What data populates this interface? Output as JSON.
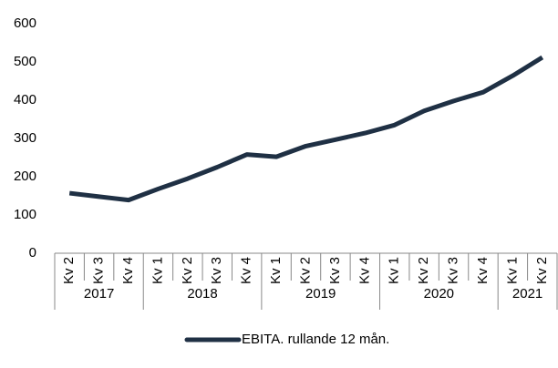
{
  "chart_data": {
    "type": "line",
    "groups": [
      {
        "name": "2017",
        "categories": [
          "Kv 2",
          "Kv 3",
          "Kv 4"
        ]
      },
      {
        "name": "2018",
        "categories": [
          "Kv 1",
          "Kv 2",
          "Kv 3",
          "Kv 4"
        ]
      },
      {
        "name": "2019",
        "categories": [
          "Kv 1",
          "Kv 2",
          "Kv 3",
          "Kv 4"
        ]
      },
      {
        "name": "2020",
        "categories": [
          "Kv 1",
          "Kv 2",
          "Kv 3",
          "Kv 4"
        ]
      },
      {
        "name": "2021",
        "categories": [
          "Kv 1",
          "Kv 2"
        ]
      }
    ],
    "series": [
      {
        "name": "EBITA. rullande 12 mån.",
        "color": "#1f3044",
        "values": [
          157,
          148,
          139,
          168,
          195,
          225,
          258,
          252,
          280,
          297,
          314,
          335,
          372,
          398,
          421,
          464,
          512
        ]
      }
    ],
    "ylim": [
      0,
      600
    ],
    "yticks": [
      0,
      100,
      200,
      300,
      400,
      500,
      600
    ],
    "grid": false,
    "legend": "bottom"
  }
}
